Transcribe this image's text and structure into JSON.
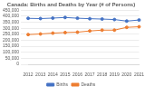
{
  "chart_data": {
    "type": "line",
    "title": "Canada: Births and Deaths by Year (# of Persons)",
    "categories": [
      "2012",
      "2013",
      "2014",
      "2015",
      "2016",
      "2017",
      "2018",
      "2019",
      "2020",
      "2021"
    ],
    "series": [
      {
        "name": "Births",
        "color": "#4472c4",
        "marker": "circle",
        "values": [
          382000,
          380000,
          384000,
          389000,
          383000,
          379000,
          376000,
          372000,
          359000,
          368000
        ]
      },
      {
        "name": "Deaths",
        "color": "#ed7d31",
        "marker": "circle",
        "values": [
          247000,
          252000,
          259000,
          264000,
          267000,
          277000,
          284000,
          284000,
          307000,
          312000
        ]
      }
    ],
    "ylim": [
      0,
      450000
    ],
    "yticks": [
      0,
      {
        "value": 50000,
        "label": "50,000"
      },
      {
        "value": 100000,
        "label": "100,000"
      },
      {
        "value": 150000,
        "label": "150,000"
      },
      {
        "value": 200000,
        "label": "200,000"
      },
      {
        "value": 250000,
        "label": "250,000"
      },
      {
        "value": 300000,
        "label": "300,000"
      },
      {
        "value": 350000,
        "label": "350,000"
      },
      {
        "value": 400000,
        "label": "400,000"
      },
      {
        "value": 450000,
        "label": "450,000"
      }
    ],
    "grid": true,
    "legend": "bottom"
  }
}
